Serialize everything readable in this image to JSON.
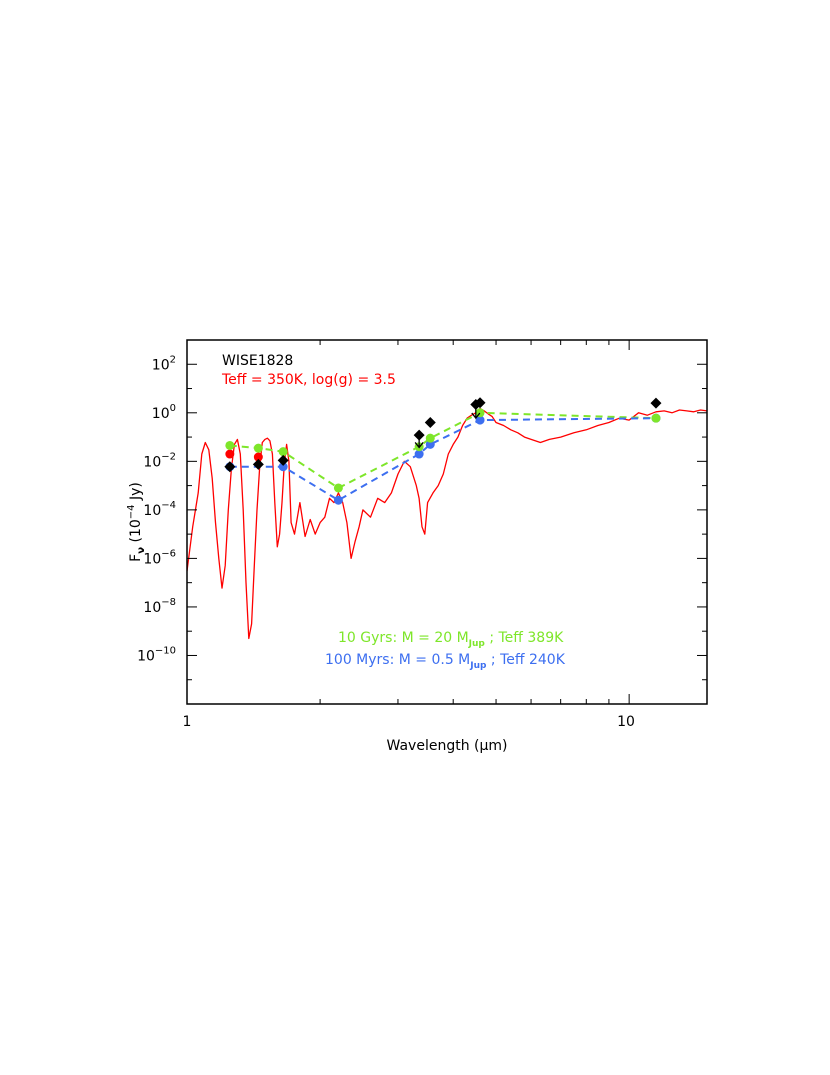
{
  "chart_data": {
    "type": "line",
    "xscale": "log",
    "yscale": "log",
    "xlim": [
      1,
      15
    ],
    "ylim": [
      1e-12,
      1000
    ],
    "xlabel": "Wavelength (µm)",
    "ylabel_base": "F",
    "ylabel_sub": "ν",
    "ylabel_unit_pre": "(10",
    "ylabel_unit_exp": "−4",
    "ylabel_unit_post": " Jy)",
    "x_ticks_labeled": [
      {
        "value": 1,
        "label": "1"
      },
      {
        "value": 10,
        "label": "10"
      }
    ],
    "y_ticks_labeled": [
      {
        "value": 100.0,
        "base": "10",
        "exp": "2"
      },
      {
        "value": 1.0,
        "base": "10",
        "exp": "0"
      },
      {
        "value": 0.01,
        "base": "10",
        "exp": "−2"
      },
      {
        "value": 0.0001,
        "base": "10",
        "exp": "−4"
      },
      {
        "value": 1e-06,
        "base": "10",
        "exp": "−6"
      },
      {
        "value": 1e-08,
        "base": "10",
        "exp": "−8"
      },
      {
        "value": 1e-10,
        "base": "10",
        "exp": "−10"
      }
    ],
    "annotations": {
      "object_name": "WISE1828",
      "model_params": "Teff = 350K, log(g) = 3.5",
      "green_pre": "10 Gyrs: M = 20 M",
      "green_sub": "Jup",
      "green_post": " ; Teff 389K",
      "blue_pre": "100 Myrs: M = 0.5 M",
      "blue_sub": "Jup",
      "blue_post": " ; Teff 240K"
    },
    "colors": {
      "model_spectrum": "#ff0000",
      "green": "#7ee62a",
      "blue": "#3d6ff0",
      "observed": "#000000",
      "frame": "#000000"
    },
    "model_spectrum": {
      "x": [
        1.0,
        1.03,
        1.06,
        1.08,
        1.1,
        1.12,
        1.14,
        1.16,
        1.18,
        1.2,
        1.22,
        1.24,
        1.26,
        1.28,
        1.3,
        1.32,
        1.34,
        1.36,
        1.38,
        1.4,
        1.42,
        1.44,
        1.46,
        1.48,
        1.5,
        1.52,
        1.54,
        1.56,
        1.58,
        1.6,
        1.62,
        1.64,
        1.66,
        1.68,
        1.7,
        1.72,
        1.75,
        1.8,
        1.85,
        1.9,
        1.95,
        2.0,
        2.05,
        2.1,
        2.15,
        2.2,
        2.25,
        2.3,
        2.35,
        2.4,
        2.45,
        2.5,
        2.6,
        2.7,
        2.8,
        2.9,
        3.0,
        3.1,
        3.2,
        3.3,
        3.35,
        3.4,
        3.45,
        3.5,
        3.6,
        3.7,
        3.8,
        3.9,
        4.0,
        4.1,
        4.2,
        4.3,
        4.4,
        4.5,
        4.6,
        4.7,
        4.8,
        4.9,
        5.0,
        5.2,
        5.4,
        5.6,
        5.8,
        6.0,
        6.3,
        6.6,
        7.0,
        7.5,
        8.0,
        8.5,
        9.0,
        9.5,
        10.0,
        10.5,
        11.0,
        11.5,
        12.0,
        12.5,
        13.0,
        13.5,
        14.0,
        14.5,
        15.0
      ],
      "y": [
        3e-07,
        2e-05,
        0.0005,
        0.02,
        0.06,
        0.03,
        0.002,
        3e-05,
        1e-06,
        6e-08,
        5e-07,
        0.0001,
        0.005,
        0.05,
        0.08,
        0.02,
        0.0001,
        1e-07,
        5e-10,
        2e-09,
        5e-07,
        0.0001,
        0.006,
        0.06,
        0.08,
        0.09,
        0.07,
        0.02,
        0.0002,
        3e-06,
        1e-05,
        0.0002,
        0.008,
        0.05,
        0.01,
        3e-05,
        1e-05,
        0.0002,
        8e-06,
        4e-05,
        1e-05,
        3e-05,
        5e-05,
        0.0003,
        0.0002,
        0.0005,
        0.0002,
        3e-05,
        1e-06,
        5e-06,
        2e-05,
        0.0001,
        5e-05,
        0.0003,
        0.0002,
        0.0005,
        0.003,
        0.01,
        0.006,
        0.001,
        0.0003,
        2e-05,
        1e-05,
        0.0002,
        0.0005,
        0.001,
        0.003,
        0.02,
        0.05,
        0.1,
        0.3,
        0.6,
        0.8,
        1.0,
        1.5,
        1.2,
        0.9,
        0.7,
        0.4,
        0.3,
        0.2,
        0.15,
        0.1,
        0.08,
        0.06,
        0.08,
        0.1,
        0.15,
        0.2,
        0.3,
        0.4,
        0.6,
        0.5,
        1.0,
        0.8,
        1.1,
        1.2,
        1.0,
        1.3,
        1.2,
        1.1,
        1.3,
        1.2
      ]
    },
    "green_model": {
      "x": [
        1.25,
        1.45,
        1.65,
        2.2,
        3.35,
        3.55,
        4.6,
        11.5
      ],
      "y": [
        0.045,
        0.035,
        0.025,
        0.0008,
        0.04,
        0.09,
        1.0,
        0.6
      ]
    },
    "blue_model": {
      "x": [
        1.25,
        1.65,
        2.2,
        3.35,
        3.55,
        4.6,
        11.5
      ],
      "y": [
        0.006,
        0.006,
        0.00025,
        0.02,
        0.05,
        0.5,
        0.6
      ]
    },
    "red_points": {
      "x": [
        1.25,
        1.45
      ],
      "y": [
        0.02,
        0.015
      ]
    },
    "observed": {
      "x": [
        1.25,
        1.45,
        1.65,
        3.35,
        3.55,
        4.5,
        4.6,
        11.5
      ],
      "y": [
        0.006,
        0.0075,
        0.011,
        0.12,
        0.4,
        2.2,
        2.6,
        2.5
      ]
    },
    "upper_limit_arrows": {
      "x": [
        3.35,
        4.5
      ],
      "y": [
        0.08,
        1.3
      ]
    }
  }
}
